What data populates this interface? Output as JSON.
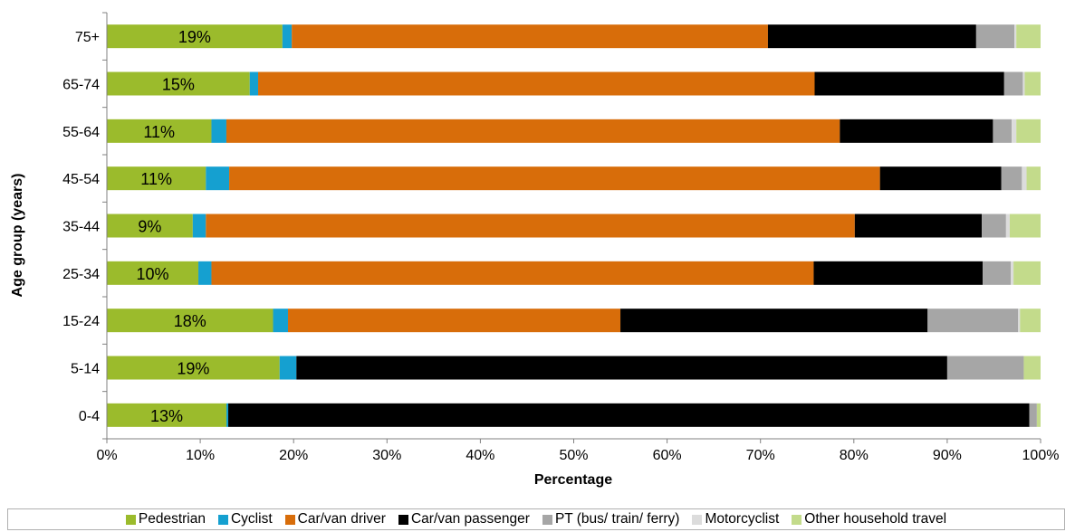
{
  "chart_data": {
    "type": "bar",
    "orientation": "horizontal",
    "stacked": true,
    "title": "",
    "xlabel": "Percentage",
    "ylabel": "Age group (years)",
    "xlim": [
      0,
      100
    ],
    "x_ticks": [
      "0%",
      "10%",
      "20%",
      "30%",
      "40%",
      "50%",
      "60%",
      "70%",
      "80%",
      "90%",
      "100%"
    ],
    "grid": false,
    "legend_position": "bottom",
    "categories": [
      "75+",
      "65-74",
      "55-64",
      "45-54",
      "35-44",
      "25-34",
      "15-24",
      "5-14",
      "0-4"
    ],
    "data_labels": [
      "19%",
      "15%",
      "11%",
      "11%",
      "9%",
      "10%",
      "18%",
      "19%",
      "13%"
    ],
    "series": [
      {
        "name": "Pedestrian",
        "color": "#9bbb2c",
        "values": [
          18.8,
          15.3,
          11.2,
          10.6,
          9.2,
          9.8,
          17.8,
          18.5,
          12.8
        ]
      },
      {
        "name": "Cyclist",
        "color": "#15a0d0",
        "values": [
          1.0,
          0.9,
          1.6,
          2.5,
          1.4,
          1.4,
          1.6,
          1.8,
          0.2
        ]
      },
      {
        "name": "Car/van driver",
        "color": "#d86d0a",
        "values": [
          51.0,
          59.6,
          65.7,
          69.7,
          69.5,
          64.5,
          35.6,
          0,
          0
        ]
      },
      {
        "name": "Car/van passenger",
        "color": "#000000",
        "values": [
          22.3,
          20.3,
          16.4,
          13.0,
          13.6,
          18.1,
          32.9,
          69.7,
          85.8
        ]
      },
      {
        "name": "PT (bus/ train/ ferry)",
        "color": "#a6a6a6",
        "values": [
          4.1,
          2.0,
          2.0,
          2.2,
          2.6,
          3.0,
          9.7,
          8.2,
          0.8
        ]
      },
      {
        "name": "Motorcyclist",
        "color": "#dcdcdc",
        "values": [
          0.2,
          0.2,
          0.5,
          0.5,
          0.4,
          0.3,
          0.2,
          0,
          0
        ]
      },
      {
        "name": "Other household travel",
        "color": "#c3db8b",
        "values": [
          2.6,
          1.7,
          2.6,
          1.5,
          3.3,
          2.9,
          2.2,
          1.8,
          0.4
        ]
      }
    ]
  }
}
